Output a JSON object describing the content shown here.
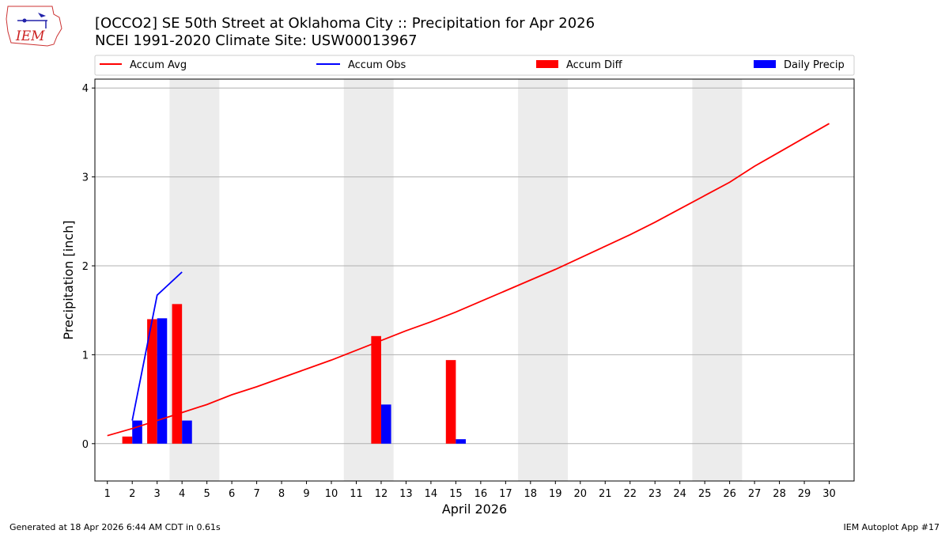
{
  "logo": {
    "text": "IEM"
  },
  "footer": {
    "generated": "Generated at 18 Apr 2026 6:44 AM CDT in 0.61s",
    "app": "IEM Autoplot App #17"
  },
  "colors": {
    "avg": "#ff0000",
    "obs": "#0000ff",
    "diff": "#ff0000",
    "daily": "#0000ff",
    "weekend": "#ececec",
    "grid": "#b0b0b0"
  },
  "chart_data": {
    "type": "bar",
    "title": "[OCCO2] SE 50th Street at Oklahoma City :: Precipitation for Apr 2026",
    "subtitle": "NCEI 1991-2020 Climate Site: USW00013967",
    "xlabel": "April 2026",
    "ylabel": "Precipitation [inch]",
    "xlim": [
      0.5,
      31.0
    ],
    "ylim": [
      -0.42,
      4.1
    ],
    "yticks": [
      0,
      1,
      2,
      3,
      4
    ],
    "grid": "horizontal",
    "legend_position": "top",
    "days": [
      1,
      2,
      3,
      4,
      5,
      6,
      7,
      8,
      9,
      10,
      11,
      12,
      13,
      14,
      15,
      16,
      17,
      18,
      19,
      20,
      21,
      22,
      23,
      24,
      25,
      26,
      27,
      28,
      29,
      30
    ],
    "weekend_bands": [
      [
        3.5,
        5.5
      ],
      [
        10.5,
        12.5
      ],
      [
        17.5,
        19.5
      ],
      [
        24.5,
        26.5
      ]
    ],
    "series": [
      {
        "name": "Accum Avg",
        "kind": "line",
        "x": [
          1,
          2,
          3,
          4,
          5,
          6,
          7,
          8,
          9,
          10,
          11,
          12,
          13,
          14,
          15,
          16,
          17,
          18,
          19,
          20,
          21,
          22,
          23,
          24,
          25,
          26,
          27,
          28,
          29,
          30
        ],
        "values": [
          0.09,
          0.17,
          0.26,
          0.35,
          0.44,
          0.55,
          0.64,
          0.74,
          0.84,
          0.94,
          1.05,
          1.16,
          1.27,
          1.37,
          1.48,
          1.6,
          1.72,
          1.84,
          1.96,
          2.09,
          2.22,
          2.35,
          2.49,
          2.64,
          2.79,
          2.94,
          3.12,
          3.28,
          3.44,
          3.6
        ]
      },
      {
        "name": "Accum Obs",
        "kind": "line",
        "x": [
          2,
          3,
          4
        ],
        "values": [
          0.26,
          1.67,
          1.93
        ]
      },
      {
        "name": "Accum Diff",
        "kind": "bar",
        "x": [
          2,
          3,
          4,
          12,
          15
        ],
        "values": [
          0.08,
          1.4,
          1.57,
          1.21,
          0.94
        ]
      },
      {
        "name": "Daily Precip",
        "kind": "bar",
        "x": [
          2,
          3,
          4,
          12,
          15
        ],
        "values": [
          0.26,
          1.41,
          0.26,
          0.44,
          0.05
        ]
      }
    ]
  }
}
